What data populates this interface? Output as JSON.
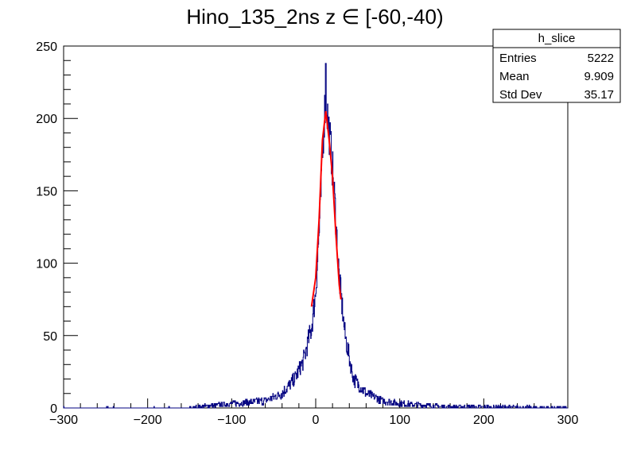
{
  "chart_data": {
    "type": "histogram",
    "title": "Hino_135_2ns z  ∈ [-60,-40)",
    "xlim": [
      -300,
      300
    ],
    "ylim": [
      0,
      250
    ],
    "x_ticks": [
      -300,
      -200,
      -100,
      0,
      100,
      200,
      300
    ],
    "x_tick_labels": [
      "−300",
      "−200",
      "−100",
      "0",
      "100",
      "200",
      "300"
    ],
    "y_ticks": [
      0,
      50,
      100,
      150,
      200,
      250
    ],
    "y_tick_labels": [
      "0",
      "50",
      "100",
      "150",
      "200",
      "250"
    ],
    "grid": false,
    "series": [
      {
        "kind": "histogram",
        "color": "#000080",
        "binning": "fine bins over [-300, 300]",
        "peak_x": 12,
        "peak_y": 238,
        "envelope": [
          [
            -300,
            0
          ],
          [
            -150,
            0
          ],
          [
            -100,
            3
          ],
          [
            -60,
            5
          ],
          [
            -40,
            10
          ],
          [
            -25,
            20
          ],
          [
            -15,
            32
          ],
          [
            -5,
            55
          ],
          [
            0,
            80
          ],
          [
            5,
            130
          ],
          [
            10,
            200
          ],
          [
            12,
            215
          ],
          [
            18,
            180
          ],
          [
            22,
            150
          ],
          [
            28,
            90
          ],
          [
            35,
            50
          ],
          [
            45,
            20
          ],
          [
            60,
            10
          ],
          [
            80,
            5
          ],
          [
            100,
            3
          ],
          [
            150,
            1
          ],
          [
            300,
            0
          ]
        ]
      },
      {
        "kind": "fit",
        "color": "#ff0000",
        "x_range": [
          -5,
          30
        ],
        "curve": [
          [
            -5,
            70
          ],
          [
            0,
            90
          ],
          [
            4,
            130
          ],
          [
            8,
            185
          ],
          [
            12,
            205
          ],
          [
            16,
            185
          ],
          [
            20,
            160
          ],
          [
            24,
            120
          ],
          [
            28,
            85
          ],
          [
            30,
            75
          ]
        ]
      }
    ],
    "stats_box": {
      "name": "h_slice",
      "rows": [
        {
          "label": "Entries",
          "value": "5222"
        },
        {
          "label": "Mean",
          "value": "9.909"
        },
        {
          "label": "Std Dev",
          "value": "35.17"
        }
      ]
    }
  }
}
